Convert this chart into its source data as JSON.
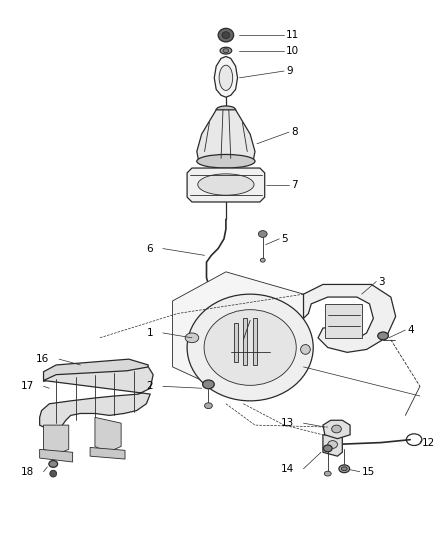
{
  "background_color": "#ffffff",
  "line_color": "#2a2a2a",
  "label_color": "#000000",
  "fig_width": 4.38,
  "fig_height": 5.33,
  "dpi": 100
}
